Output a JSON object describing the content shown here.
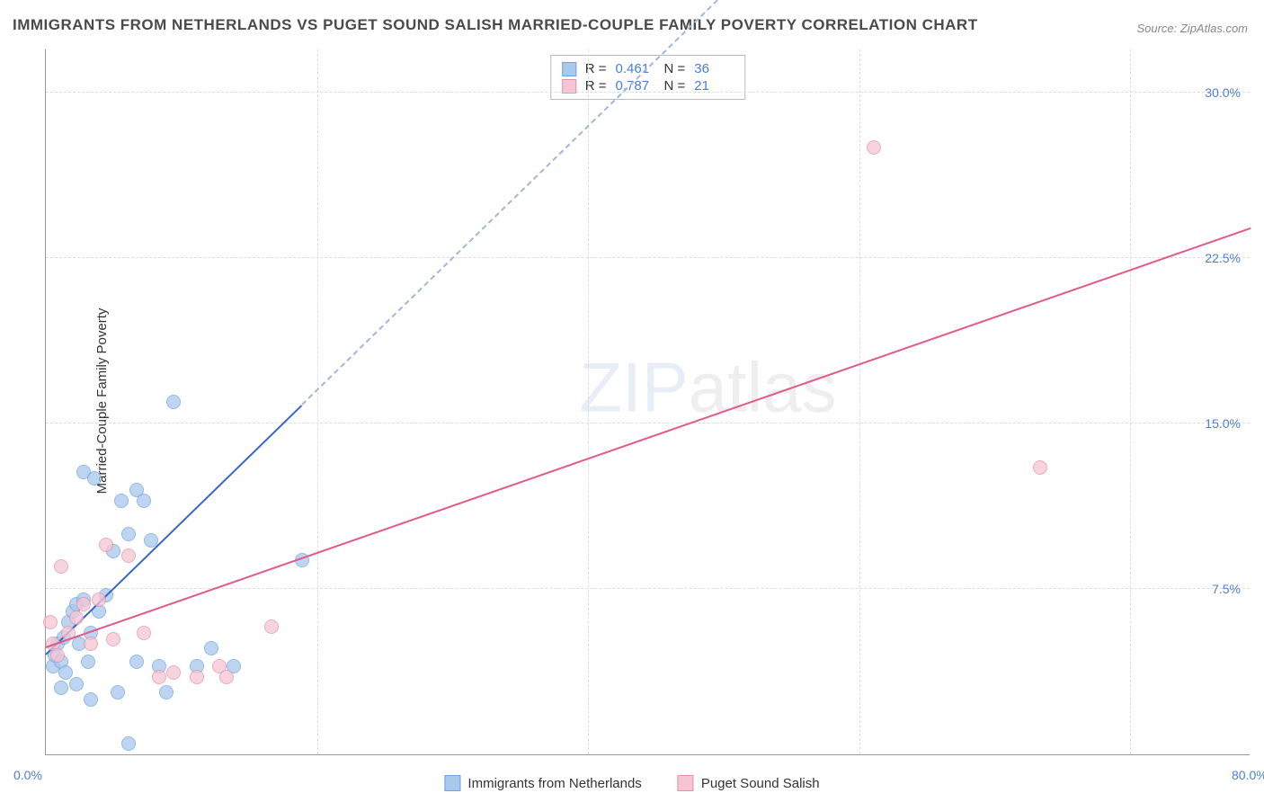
{
  "title": "IMMIGRANTS FROM NETHERLANDS VS PUGET SOUND SALISH MARRIED-COUPLE FAMILY POVERTY CORRELATION CHART",
  "source": "Source: ZipAtlas.com",
  "y_axis_label": "Married-Couple Family Poverty",
  "watermark_a": "ZIP",
  "watermark_b": "atlas",
  "chart": {
    "type": "scatter",
    "xlim": [
      0,
      80
    ],
    "ylim": [
      0,
      32
    ],
    "x_ticks": [
      0,
      80
    ],
    "x_tick_labels": [
      "0.0%",
      "80.0%"
    ],
    "y_ticks": [
      7.5,
      15.0,
      22.5,
      30.0
    ],
    "y_tick_labels": [
      "7.5%",
      "15.0%",
      "22.5%",
      "30.0%"
    ],
    "grid_color": "#dddddd",
    "axis_color": "#999999",
    "background_color": "#ffffff",
    "tick_label_color": "#4a7fd8",
    "v_grid_x": [
      18,
      36,
      54,
      72
    ]
  },
  "series": [
    {
      "name": "Immigrants from Netherlands",
      "fill_color": "#a8c8ec",
      "border_color": "#6fa3df",
      "r_value": "0.461",
      "n_value": "36",
      "trend": {
        "x1": 0,
        "y1": 4.5,
        "x2": 17,
        "y2": 15.8,
        "color": "#3766c8",
        "dashed_extend_to_x": 45
      },
      "points": [
        {
          "x": 0.5,
          "y": 4.0
        },
        {
          "x": 0.6,
          "y": 4.5
        },
        {
          "x": 0.8,
          "y": 5.0
        },
        {
          "x": 1.0,
          "y": 4.2
        },
        {
          "x": 1.2,
          "y": 5.3
        },
        {
          "x": 1.5,
          "y": 6.0
        },
        {
          "x": 1.8,
          "y": 6.5
        },
        {
          "x": 2.0,
          "y": 6.8
        },
        {
          "x": 2.2,
          "y": 5.0
        },
        {
          "x": 2.5,
          "y": 7.0
        },
        {
          "x": 2.8,
          "y": 4.2
        },
        {
          "x": 2.0,
          "y": 3.2
        },
        {
          "x": 3.0,
          "y": 5.5
        },
        {
          "x": 3.5,
          "y": 6.5
        },
        {
          "x": 4.0,
          "y": 7.2
        },
        {
          "x": 1.0,
          "y": 3.0
        },
        {
          "x": 2.5,
          "y": 12.8
        },
        {
          "x": 3.2,
          "y": 12.5
        },
        {
          "x": 4.5,
          "y": 9.2
        },
        {
          "x": 5.0,
          "y": 11.5
        },
        {
          "x": 5.5,
          "y": 10.0
        },
        {
          "x": 6.0,
          "y": 12.0
        },
        {
          "x": 6.5,
          "y": 11.5
        },
        {
          "x": 7.0,
          "y": 9.7
        },
        {
          "x": 8.5,
          "y": 16.0
        },
        {
          "x": 4.8,
          "y": 2.8
        },
        {
          "x": 5.5,
          "y": 0.5
        },
        {
          "x": 6.0,
          "y": 4.2
        },
        {
          "x": 7.5,
          "y": 4.0
        },
        {
          "x": 8.0,
          "y": 2.8
        },
        {
          "x": 10.0,
          "y": 4.0
        },
        {
          "x": 11.0,
          "y": 4.8
        },
        {
          "x": 12.5,
          "y": 4.0
        },
        {
          "x": 3.0,
          "y": 2.5
        },
        {
          "x": 17.0,
          "y": 8.8
        },
        {
          "x": 1.3,
          "y": 3.7
        }
      ]
    },
    {
      "name": "Puget Sound Salish",
      "fill_color": "#f5c5d4",
      "border_color": "#e88fac",
      "r_value": "0.787",
      "n_value": "21",
      "trend": {
        "x1": 0,
        "y1": 4.8,
        "x2": 80,
        "y2": 23.8,
        "color": "#e35a8a",
        "dashed_extend_to_x": null
      },
      "points": [
        {
          "x": 0.3,
          "y": 6.0
        },
        {
          "x": 0.5,
          "y": 5.0
        },
        {
          "x": 0.8,
          "y": 4.5
        },
        {
          "x": 1.0,
          "y": 8.5
        },
        {
          "x": 1.5,
          "y": 5.5
        },
        {
          "x": 2.0,
          "y": 6.2
        },
        {
          "x": 2.5,
          "y": 6.8
        },
        {
          "x": 3.0,
          "y": 5.0
        },
        {
          "x": 3.5,
          "y": 7.0
        },
        {
          "x": 4.0,
          "y": 9.5
        },
        {
          "x": 4.5,
          "y": 5.2
        },
        {
          "x": 5.5,
          "y": 9.0
        },
        {
          "x": 6.5,
          "y": 5.5
        },
        {
          "x": 7.5,
          "y": 3.5
        },
        {
          "x": 8.5,
          "y": 3.7
        },
        {
          "x": 10.0,
          "y": 3.5
        },
        {
          "x": 11.5,
          "y": 4.0
        },
        {
          "x": 12.0,
          "y": 3.5
        },
        {
          "x": 15.0,
          "y": 5.8
        },
        {
          "x": 55.0,
          "y": 27.5
        },
        {
          "x": 66.0,
          "y": 13.0
        }
      ]
    }
  ],
  "stat_labels": {
    "r": "R =",
    "n": "N ="
  },
  "legend": [
    {
      "label": "Immigrants from Netherlands",
      "fill": "#a8c8ec",
      "border": "#6fa3df"
    },
    {
      "label": "Puget Sound Salish",
      "fill": "#f5c5d4",
      "border": "#e88fac"
    }
  ]
}
